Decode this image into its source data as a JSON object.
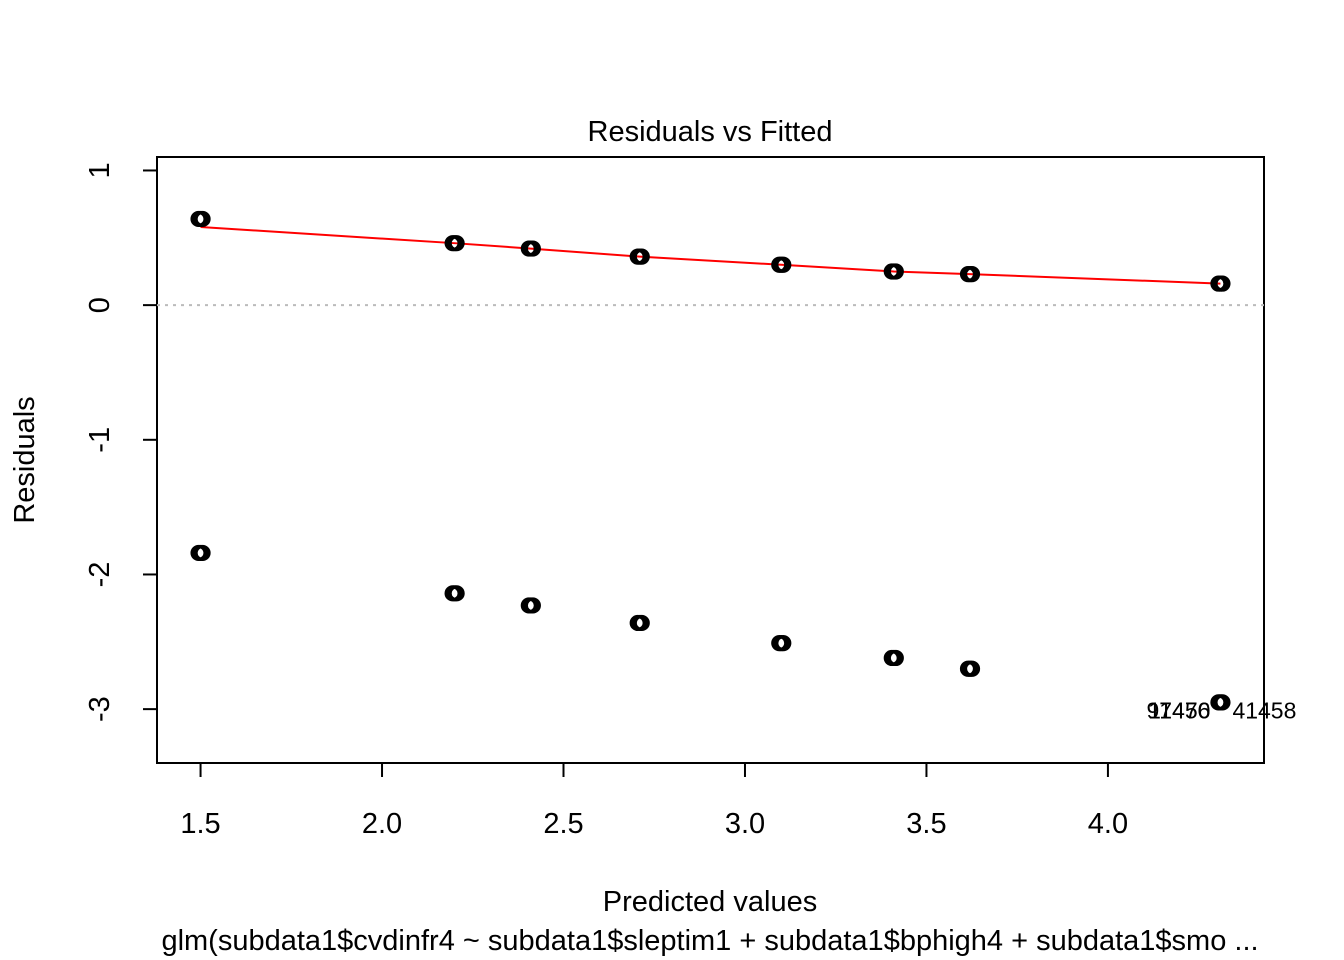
{
  "chart_data": {
    "type": "scatter",
    "title": "Residuals vs Fitted",
    "xlabel": "Predicted values",
    "ylabel": "Residuals",
    "subtitle": "glm(subdata1$cvdinfr4 ~ subdata1$sleptim1 + subdata1$bphigh4 + subdata1$smo ...",
    "xlim": [
      1.38,
      4.43
    ],
    "ylim": [
      -3.4,
      1.1
    ],
    "x_ticks": [
      1.5,
      2.0,
      2.5,
      3.0,
      3.5,
      4.0
    ],
    "x_tick_labels": [
      "1.5",
      "2.0",
      "2.5",
      "3.0",
      "3.5",
      "4.0"
    ],
    "y_ticks": [
      -3,
      -2,
      -1,
      0,
      1
    ],
    "y_tick_labels": [
      "-3",
      "-2",
      "-1",
      "0",
      "1"
    ],
    "reference_line": {
      "y": 0,
      "style": "dotted",
      "color": "#bbbbbb"
    },
    "series": [
      {
        "points": [
          {
            "x": 1.5,
            "y": 0.64
          },
          {
            "x": 2.2,
            "y": 0.46
          },
          {
            "x": 2.41,
            "y": 0.42
          },
          {
            "x": 2.71,
            "y": 0.36
          },
          {
            "x": 3.1,
            "y": 0.3
          },
          {
            "x": 3.41,
            "y": 0.25
          },
          {
            "x": 3.62,
            "y": 0.23
          },
          {
            "x": 4.31,
            "y": 0.16
          },
          {
            "x": 1.5,
            "y": -1.84
          },
          {
            "x": 2.2,
            "y": -2.14
          },
          {
            "x": 2.41,
            "y": -2.23
          },
          {
            "x": 2.71,
            "y": -2.36
          },
          {
            "x": 3.1,
            "y": -2.51
          },
          {
            "x": 3.41,
            "y": -2.62
          },
          {
            "x": 3.62,
            "y": -2.7
          },
          {
            "x": 4.31,
            "y": -2.95
          }
        ],
        "color": "#000000",
        "marker": "open-circle"
      }
    ],
    "smooth_line": {
      "color": "#ff0000",
      "points": [
        {
          "x": 1.5,
          "y": 0.58
        },
        {
          "x": 2.2,
          "y": 0.46
        },
        {
          "x": 2.41,
          "y": 0.42
        },
        {
          "x": 2.71,
          "y": 0.36
        },
        {
          "x": 3.1,
          "y": 0.3
        },
        {
          "x": 3.41,
          "y": 0.25
        },
        {
          "x": 3.62,
          "y": 0.23
        },
        {
          "x": 4.31,
          "y": 0.16
        }
      ]
    },
    "annotations": [
      {
        "text": "97470",
        "x": 4.31,
        "y": -2.95,
        "pos": "left"
      },
      {
        "text": "11456",
        "x": 4.31,
        "y": -2.95,
        "pos": "left"
      },
      {
        "text": "41458",
        "x": 4.31,
        "y": -2.95,
        "pos": "right"
      }
    ],
    "grid": false,
    "legend": "none"
  }
}
